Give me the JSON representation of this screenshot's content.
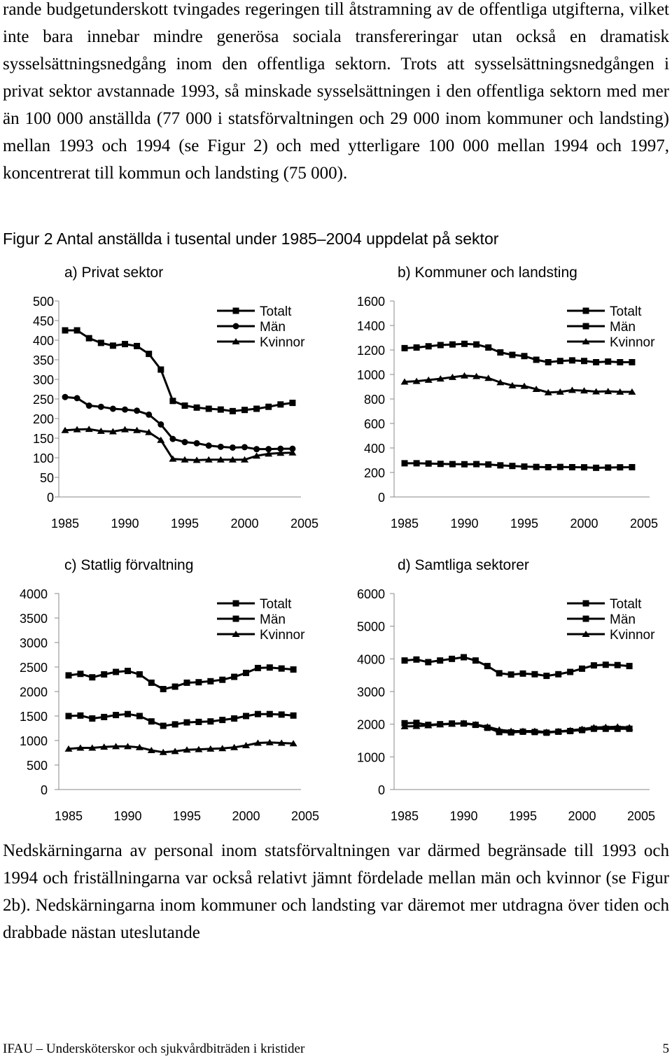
{
  "paragraph_top": "rande budgetunderskott tvingades regeringen till åtstramning av de offentliga utgifterna, vilket inte bara innebar mindre generösa sociala transfereringar utan också en dramatisk sysselsättningsnedgång inom den offentliga sektorn. Trots att sysselsättningsnedgången i privat sektor avstannade 1993, så minskade sysselsättningen i den offentliga sektorn med mer än 100 000 anställda (77 000 i statsförvaltningen och 29 000 inom kommuner och landsting) mellan 1993 och 1994 (se Figur 2) och med ytterligare 100 000 mellan 1994 och 1997, koncentrerat till kommun och landsting (75 000).",
  "figure_caption": "Figur 2 Antal anställda i tusental under 1985–2004 uppdelat på sektor",
  "paragraph_bottom": "Nedskärningarna av personal inom statsförvaltningen var därmed begränsade till 1993 och 1994 och friställningarna var också relativt jämnt fördelade mellan män och kvinnor (se Figur 2b). Nedskärningarna inom kommuner och landsting var däremot mer utdragna över tiden och drabbade nästan uteslutande",
  "footer": {
    "left": "IFAU – Undersköterskor och sjukvårdbiträden i kristider",
    "page_number": "5"
  },
  "chart_data": [
    {
      "type": "line",
      "title": "a) Privat sektor",
      "xlabel": "",
      "ylabel": "",
      "x": [
        1985,
        1986,
        1987,
        1988,
        1989,
        1990,
        1991,
        1992,
        1993,
        1994,
        1995,
        1996,
        1997,
        1998,
        1999,
        2000,
        2001,
        2002,
        2003,
        2004
      ],
      "x_ticks": [
        1985,
        1990,
        1995,
        2000,
        2005
      ],
      "ylim": [
        0,
        500
      ],
      "y_ticks": [
        0,
        50,
        100,
        150,
        200,
        250,
        300,
        350,
        400,
        450,
        500
      ],
      "legend_position": "top-right",
      "series": [
        {
          "name": "Totalt",
          "marker": "square",
          "values": [
            425,
            425,
            405,
            393,
            386,
            390,
            385,
            365,
            325,
            245,
            233,
            228,
            225,
            223,
            219,
            222,
            225,
            230,
            236,
            240
          ]
        },
        {
          "name": "Män",
          "marker": "circle",
          "values": [
            255,
            252,
            233,
            230,
            225,
            223,
            220,
            210,
            185,
            148,
            140,
            137,
            131,
            128,
            126,
            127,
            122,
            122,
            123,
            123
          ]
        },
        {
          "name": "Kvinnor",
          "marker": "triangle",
          "values": [
            170,
            172,
            173,
            168,
            167,
            172,
            170,
            165,
            145,
            97,
            95,
            94,
            95,
            95,
            95,
            95,
            105,
            110,
            112,
            113
          ]
        }
      ]
    },
    {
      "type": "line",
      "title": "b) Kommuner och landsting",
      "xlabel": "",
      "ylabel": "",
      "x": [
        1985,
        1986,
        1987,
        1988,
        1989,
        1990,
        1991,
        1992,
        1993,
        1994,
        1995,
        1996,
        1997,
        1998,
        1999,
        2000,
        2001,
        2002,
        2003,
        2004
      ],
      "x_ticks": [
        1985,
        1990,
        1995,
        2000,
        2005
      ],
      "ylim": [
        0,
        1600
      ],
      "y_ticks": [
        0,
        200,
        400,
        600,
        800,
        1000,
        1200,
        1400,
        1600
      ],
      "legend_position": "top-right",
      "series": [
        {
          "name": "Totalt",
          "marker": "square",
          "values": [
            1215,
            1220,
            1230,
            1240,
            1245,
            1250,
            1245,
            1220,
            1180,
            1160,
            1150,
            1120,
            1100,
            1110,
            1115,
            1110,
            1100,
            1105,
            1100,
            1100
          ]
        },
        {
          "name": "Män",
          "marker": "square",
          "values": [
            275,
            275,
            273,
            270,
            268,
            267,
            268,
            265,
            258,
            253,
            248,
            245,
            243,
            245,
            243,
            242,
            238,
            240,
            242,
            243
          ]
        },
        {
          "name": "Kvinnor",
          "marker": "triangle",
          "values": [
            940,
            945,
            955,
            965,
            978,
            990,
            985,
            970,
            935,
            910,
            905,
            880,
            853,
            858,
            872,
            868,
            860,
            862,
            858,
            858
          ]
        }
      ]
    },
    {
      "type": "line",
      "title": "c) Statlig förvaltning",
      "xlabel": "",
      "ylabel": "",
      "x": [
        1985,
        1986,
        1987,
        1988,
        1989,
        1990,
        1991,
        1992,
        1993,
        1994,
        1995,
        1996,
        1997,
        1998,
        1999,
        2000,
        2001,
        2002,
        2003,
        2004
      ],
      "x_ticks": [
        1985,
        1990,
        1995,
        2000,
        2005
      ],
      "ylim": [
        0,
        4000
      ],
      "y_ticks": [
        0,
        500,
        1000,
        1500,
        2000,
        2500,
        3000,
        3500,
        4000
      ],
      "legend_position": "top-right",
      "series": [
        {
          "name": "Totalt",
          "marker": "square",
          "values": [
            2330,
            2360,
            2290,
            2350,
            2400,
            2420,
            2350,
            2180,
            2050,
            2100,
            2180,
            2190,
            2210,
            2240,
            2300,
            2380,
            2480,
            2490,
            2470,
            2450
          ]
        },
        {
          "name": "Män",
          "marker": "square",
          "values": [
            1500,
            1510,
            1450,
            1480,
            1520,
            1540,
            1500,
            1390,
            1300,
            1330,
            1370,
            1380,
            1390,
            1420,
            1450,
            1500,
            1540,
            1540,
            1530,
            1510
          ]
        },
        {
          "name": "Kvinnor",
          "marker": "triangle",
          "values": [
            830,
            850,
            850,
            870,
            880,
            880,
            860,
            800,
            760,
            780,
            810,
            820,
            830,
            840,
            860,
            900,
            950,
            960,
            950,
            940
          ]
        }
      ]
    },
    {
      "type": "line",
      "title": "d) Samtliga sektorer",
      "xlabel": "",
      "ylabel": "",
      "x": [
        1985,
        1986,
        1987,
        1988,
        1989,
        1990,
        1991,
        1992,
        1993,
        1994,
        1995,
        1996,
        1997,
        1998,
        1999,
        2000,
        2001,
        2002,
        2003,
        2004
      ],
      "x_ticks": [
        1985,
        1990,
        1995,
        2000,
        2005
      ],
      "ylim": [
        0,
        6000
      ],
      "y_ticks": [
        0,
        1000,
        2000,
        3000,
        4000,
        5000,
        6000
      ],
      "legend_position": "top-right",
      "series": [
        {
          "name": "Totalt",
          "marker": "square",
          "values": [
            3950,
            3980,
            3900,
            3950,
            4000,
            4050,
            3950,
            3780,
            3560,
            3520,
            3550,
            3530,
            3480,
            3530,
            3600,
            3700,
            3800,
            3820,
            3810,
            3780
          ]
        },
        {
          "name": "Män",
          "marker": "square",
          "values": [
            2030,
            2040,
            1980,
            2000,
            2020,
            2020,
            1980,
            1890,
            1760,
            1750,
            1770,
            1760,
            1740,
            1770,
            1790,
            1820,
            1860,
            1860,
            1860,
            1860
          ]
        },
        {
          "name": "Kvinnor",
          "marker": "triangle",
          "values": [
            1930,
            1940,
            1960,
            1990,
            2010,
            2030,
            1990,
            1920,
            1830,
            1790,
            1790,
            1790,
            1760,
            1780,
            1810,
            1850,
            1900,
            1910,
            1920,
            1900
          ]
        }
      ]
    }
  ]
}
